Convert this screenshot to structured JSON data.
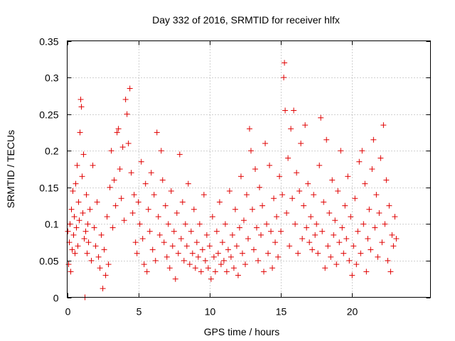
{
  "chart_data": {
    "type": "scatter",
    "title": "Day 332 of 2016, SRMTID for receiver hlfx",
    "xlabel": "GPS time / hours",
    "ylabel": "SRMTID / TECUs",
    "xlim": [
      0,
      25.5
    ],
    "ylim": [
      0,
      0.35
    ],
    "x_ticks": [
      0,
      5,
      10,
      15,
      20
    ],
    "x_tick_labels": [
      "0",
      "5",
      "10",
      "15",
      "20"
    ],
    "y_ticks": [
      0,
      0.05,
      0.1,
      0.15,
      0.2,
      0.25,
      0.3,
      0.35
    ],
    "y_tick_labels": [
      "0",
      "0.05",
      "0.1",
      "0.15",
      "0.2",
      "0.25",
      "0.3",
      "0.35"
    ],
    "grid": true,
    "marker": "+",
    "color": "#e00000",
    "series": [
      {
        "points": [
          [
            0.05,
            0.09
          ],
          [
            0.1,
            0.045
          ],
          [
            0.15,
            0.075
          ],
          [
            0.2,
            0.1
          ],
          [
            0.25,
            0.035
          ],
          [
            0.3,
            0.12
          ],
          [
            0.35,
            0.065
          ],
          [
            0.4,
            0.145
          ],
          [
            0.45,
            0.085
          ],
          [
            0.5,
            0.11
          ],
          [
            0.55,
            0.06
          ],
          [
            0.6,
            0.155
          ],
          [
            0.65,
            0.095
          ],
          [
            0.7,
            0.18
          ],
          [
            0.75,
            0.07
          ],
          [
            0.8,
            0.13
          ],
          [
            0.85,
            0.105
          ],
          [
            0.9,
            0.225
          ],
          [
            0.95,
            0.27
          ],
          [
            1.0,
            0.26
          ],
          [
            1.05,
            0.165
          ],
          [
            1.1,
            0.115
          ],
          [
            1.15,
            0.195
          ],
          [
            1.2,
            0.08
          ],
          [
            1.25,
            0.0
          ],
          [
            1.3,
            0.09
          ],
          [
            1.35,
            0.14
          ],
          [
            1.4,
            0.06
          ],
          [
            1.45,
            0.1
          ],
          [
            1.5,
            0.075
          ],
          [
            1.6,
            0.12
          ],
          [
            1.7,
            0.05
          ],
          [
            1.8,
            0.18
          ],
          [
            1.9,
            0.095
          ],
          [
            2.0,
            0.07
          ],
          [
            2.1,
            0.13
          ],
          [
            2.2,
            0.055
          ],
          [
            2.3,
            0.04
          ],
          [
            2.4,
            0.085
          ],
          [
            2.5,
            0.012
          ],
          [
            2.6,
            0.065
          ],
          [
            2.7,
            0.03
          ],
          [
            2.8,
            0.11
          ],
          [
            2.9,
            0.045
          ],
          [
            3.0,
            0.15
          ],
          [
            3.1,
            0.2
          ],
          [
            3.2,
            0.095
          ],
          [
            3.3,
            0.16
          ],
          [
            3.4,
            0.125
          ],
          [
            3.5,
            0.225
          ],
          [
            3.6,
            0.23
          ],
          [
            3.7,
            0.175
          ],
          [
            3.8,
            0.135
          ],
          [
            3.9,
            0.205
          ],
          [
            4.0,
            0.105
          ],
          [
            4.1,
            0.27
          ],
          [
            4.2,
            0.25
          ],
          [
            4.3,
            0.21
          ],
          [
            4.4,
            0.285
          ],
          [
            4.5,
            0.17
          ],
          [
            4.6,
            0.115
          ],
          [
            4.7,
            0.14
          ],
          [
            4.8,
            0.075
          ],
          [
            4.9,
            0.06
          ],
          [
            5.0,
            0.13
          ],
          [
            5.1,
            0.1
          ],
          [
            5.2,
            0.185
          ],
          [
            5.3,
            0.08
          ],
          [
            5.4,
            0.045
          ],
          [
            5.5,
            0.155
          ],
          [
            5.6,
            0.035
          ],
          [
            5.7,
            0.12
          ],
          [
            5.8,
            0.09
          ],
          [
            5.9,
            0.17
          ],
          [
            6.0,
            0.065
          ],
          [
            6.1,
            0.14
          ],
          [
            6.2,
            0.05
          ],
          [
            6.3,
            0.225
          ],
          [
            6.4,
            0.11
          ],
          [
            6.5,
            0.085
          ],
          [
            6.6,
            0.2
          ],
          [
            6.7,
            0.16
          ],
          [
            6.8,
            0.075
          ],
          [
            6.9,
            0.125
          ],
          [
            7.0,
            0.055
          ],
          [
            7.1,
            0.1
          ],
          [
            7.2,
            0.04
          ],
          [
            7.3,
            0.145
          ],
          [
            7.4,
            0.07
          ],
          [
            7.5,
            0.09
          ],
          [
            7.6,
            0.025
          ],
          [
            7.7,
            0.115
          ],
          [
            7.8,
            0.06
          ],
          [
            7.9,
            0.195
          ],
          [
            8.0,
            0.08
          ],
          [
            8.1,
            0.13
          ],
          [
            8.2,
            0.05
          ],
          [
            8.3,
            0.1
          ],
          [
            8.4,
            0.07
          ],
          [
            8.5,
            0.155
          ],
          [
            8.6,
            0.045
          ],
          [
            8.7,
            0.09
          ],
          [
            8.8,
            0.06
          ],
          [
            8.9,
            0.12
          ],
          [
            9.0,
            0.04
          ],
          [
            9.1,
            0.075
          ],
          [
            9.2,
            0.055
          ],
          [
            9.3,
            0.1
          ],
          [
            9.4,
            0.035
          ],
          [
            9.5,
            0.065
          ],
          [
            9.6,
            0.14
          ],
          [
            9.7,
            0.05
          ],
          [
            9.8,
            0.085
          ],
          [
            9.9,
            0.04
          ],
          [
            10.0,
            0.07
          ],
          [
            10.1,
            0.025
          ],
          [
            10.2,
            0.11
          ],
          [
            10.3,
            0.055
          ],
          [
            10.4,
            0.035
          ],
          [
            10.5,
            0.09
          ],
          [
            10.6,
            0.06
          ],
          [
            10.7,
            0.13
          ],
          [
            10.8,
            0.045
          ],
          [
            10.9,
            0.075
          ],
          [
            11.0,
            0.05
          ],
          [
            11.1,
            0.1
          ],
          [
            11.2,
            0.035
          ],
          [
            11.3,
            0.065
          ],
          [
            11.4,
            0.145
          ],
          [
            11.5,
            0.055
          ],
          [
            11.6,
            0.085
          ],
          [
            11.7,
            0.04
          ],
          [
            11.8,
            0.12
          ],
          [
            11.9,
            0.07
          ],
          [
            12.0,
            0.03
          ],
          [
            12.1,
            0.095
          ],
          [
            12.2,
            0.165
          ],
          [
            12.3,
            0.06
          ],
          [
            12.4,
            0.105
          ],
          [
            12.5,
            0.045
          ],
          [
            12.6,
            0.14
          ],
          [
            12.7,
            0.08
          ],
          [
            12.8,
            0.23
          ],
          [
            12.9,
            0.2
          ],
          [
            13.0,
            0.12
          ],
          [
            13.1,
            0.065
          ],
          [
            13.2,
            0.175
          ],
          [
            13.3,
            0.095
          ],
          [
            13.4,
            0.05
          ],
          [
            13.5,
            0.15
          ],
          [
            13.6,
            0.085
          ],
          [
            13.7,
            0.125
          ],
          [
            13.8,
            0.035
          ],
          [
            13.9,
            0.21
          ],
          [
            14.0,
            0.1
          ],
          [
            14.1,
            0.06
          ],
          [
            14.2,
            0.18
          ],
          [
            14.3,
            0.09
          ],
          [
            14.4,
            0.04
          ],
          [
            14.5,
            0.135
          ],
          [
            14.6,
            0.075
          ],
          [
            14.7,
            0.11
          ],
          [
            14.8,
            0.055
          ],
          [
            14.9,
            0.165
          ],
          [
            15.0,
            0.09
          ],
          [
            15.1,
            0.14
          ],
          [
            15.2,
            0.3
          ],
          [
            15.25,
            0.32
          ],
          [
            15.3,
            0.255
          ],
          [
            15.4,
            0.115
          ],
          [
            15.5,
            0.19
          ],
          [
            15.6,
            0.07
          ],
          [
            15.7,
            0.23
          ],
          [
            15.8,
            0.135
          ],
          [
            15.9,
            0.255
          ],
          [
            16.0,
            0.1
          ],
          [
            16.1,
            0.17
          ],
          [
            16.2,
            0.06
          ],
          [
            16.3,
            0.145
          ],
          [
            16.4,
            0.21
          ],
          [
            16.5,
            0.08
          ],
          [
            16.6,
            0.125
          ],
          [
            16.7,
            0.235
          ],
          [
            16.8,
            0.095
          ],
          [
            16.9,
            0.155
          ],
          [
            17.0,
            0.075
          ],
          [
            17.1,
            0.11
          ],
          [
            17.2,
            0.065
          ],
          [
            17.3,
            0.14
          ],
          [
            17.4,
            0.085
          ],
          [
            17.5,
            0.1
          ],
          [
            17.6,
            0.06
          ],
          [
            17.7,
            0.18
          ],
          [
            17.8,
            0.245
          ],
          [
            17.9,
            0.09
          ],
          [
            18.0,
            0.13
          ],
          [
            18.1,
            0.04
          ],
          [
            18.2,
            0.215
          ],
          [
            18.3,
            0.07
          ],
          [
            18.4,
            0.115
          ],
          [
            18.5,
            0.055
          ],
          [
            18.6,
            0.16
          ],
          [
            18.7,
            0.085
          ],
          [
            18.8,
            0.105
          ],
          [
            18.9,
            0.045
          ],
          [
            19.0,
            0.145
          ],
          [
            19.1,
            0.075
          ],
          [
            19.2,
            0.2
          ],
          [
            19.3,
            0.095
          ],
          [
            19.4,
            0.06
          ],
          [
            19.5,
            0.125
          ],
          [
            19.6,
            0.08
          ],
          [
            19.7,
            0.165
          ],
          [
            19.8,
            0.05
          ],
          [
            19.9,
            0.11
          ],
          [
            20.0,
            0.03
          ],
          [
            20.1,
            0.07
          ],
          [
            20.2,
            0.135
          ],
          [
            20.3,
            0.045
          ],
          [
            20.4,
            0.09
          ],
          [
            20.5,
            0.185
          ],
          [
            20.6,
            0.06
          ],
          [
            20.7,
            0.2
          ],
          [
            20.8,
            0.1
          ],
          [
            20.9,
            0.155
          ],
          [
            21.0,
            0.035
          ],
          [
            21.1,
            0.08
          ],
          [
            21.2,
            0.12
          ],
          [
            21.3,
            0.065
          ],
          [
            21.4,
            0.175
          ],
          [
            21.5,
            0.215
          ],
          [
            21.6,
            0.095
          ],
          [
            21.7,
            0.14
          ],
          [
            21.8,
            0.055
          ],
          [
            21.9,
            0.115
          ],
          [
            22.0,
            0.19
          ],
          [
            22.1,
            0.075
          ],
          [
            22.2,
            0.235
          ],
          [
            22.3,
            0.1
          ],
          [
            22.4,
            0.16
          ],
          [
            22.5,
            0.05
          ],
          [
            22.6,
            0.125
          ],
          [
            22.7,
            0.035
          ],
          [
            22.8,
            0.085
          ],
          [
            22.9,
            0.07
          ],
          [
            23.0,
            0.11
          ],
          [
            23.1,
            0.08
          ]
        ]
      }
    ]
  }
}
